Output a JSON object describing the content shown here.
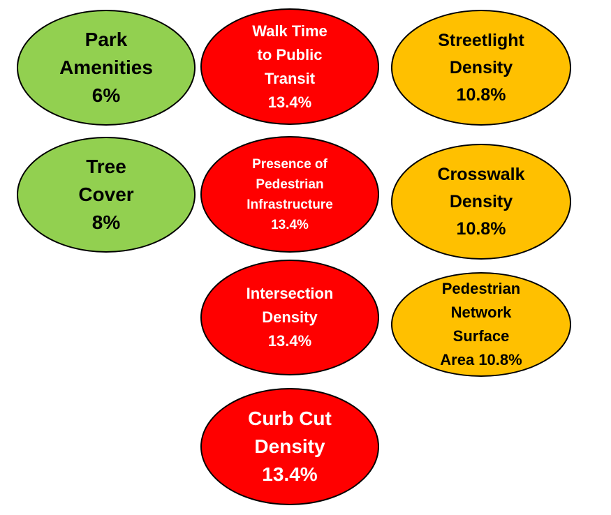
{
  "factors": {
    "park": {
      "lines": [
        "Park",
        "Amenities",
        "6%"
      ],
      "color": "#92d050"
    },
    "tree": {
      "lines": [
        "Tree",
        "Cover",
        "8%"
      ],
      "color": "#92d050"
    },
    "walk": {
      "lines": [
        "Walk Time",
        "to Public",
        "Transit",
        "13.4%"
      ],
      "color": "#ff0000"
    },
    "presence": {
      "lines": [
        "Presence of",
        "Pedestrian",
        "Infrastructure",
        "13.4%"
      ],
      "color": "#ff0000"
    },
    "intersection": {
      "lines": [
        "Intersection",
        "Density",
        "13.4%"
      ],
      "color": "#ff0000"
    },
    "curb": {
      "lines": [
        "Curb Cut",
        "Density",
        "13.4%"
      ],
      "color": "#ff0000"
    },
    "streetlight": {
      "lines": [
        "Streetlight",
        "Density",
        "10.8%"
      ],
      "color": "#ffc000"
    },
    "crosswalk": {
      "lines": [
        "Crosswalk",
        "Density",
        "10.8%"
      ],
      "color": "#ffc000"
    },
    "pedestrian": {
      "lines": [
        "Pedestrian",
        "Network",
        "Surface",
        "Area 10.8%"
      ],
      "color": "#ffc000"
    }
  }
}
